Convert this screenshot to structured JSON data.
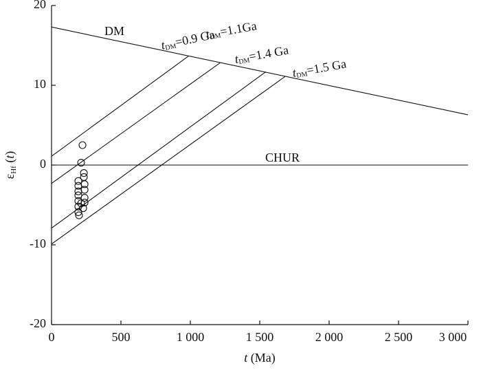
{
  "chart_data": {
    "type": "scatter",
    "x_label": {
      "italic": "t",
      "text": " (Ma)"
    },
    "y_label": {
      "symbol": "ε",
      "sub": "Hf",
      "open": " (",
      "italic": "t",
      "close": ")"
    },
    "xlim": [
      0,
      3000
    ],
    "ylim": [
      -20,
      20
    ],
    "xticks": [
      0,
      500,
      {
        "value": 1000,
        "label": "1 000"
      },
      {
        "value": 1500,
        "label": "1 500"
      },
      {
        "value": 2000,
        "label": "2 000"
      },
      {
        "value": 2500,
        "label": "2 500"
      },
      {
        "value": 3000,
        "label": "3 000"
      }
    ],
    "yticks": [
      -20,
      -10,
      0,
      10,
      20
    ],
    "color": "#111111",
    "x": [
      223,
      213,
      193,
      193,
      193,
      193,
      193,
      193,
      193,
      198,
      233,
      233,
      238,
      238,
      238,
      238,
      228,
      213
    ],
    "y": [
      2.5,
      0.3,
      -2.0,
      -2.6,
      -3.3,
      -3.8,
      -4.5,
      -5.2,
      -5.9,
      -6.3,
      -1.0,
      -1.5,
      -2.4,
      -3.1,
      -4.1,
      -4.7,
      -5.4,
      -4.8
    ],
    "lines": [
      {
        "label": "DM",
        "x": [
          0,
          3000
        ],
        "y": [
          17.3,
          6.3
        ]
      },
      {
        "label": "CHUR",
        "x": [
          0,
          3000
        ],
        "y": [
          0,
          0
        ]
      },
      {
        "label_italic": "t",
        "label_sub": "DM",
        "label_text": "=0.9 Ga",
        "x": [
          0,
          990
        ],
        "y": [
          1.1,
          13.7
        ]
      },
      {
        "label_italic": "t",
        "label_sub": "DM",
        "label_text": "=1.1Ga",
        "x": [
          0,
          1213
        ],
        "y": [
          -2.3,
          12.8
        ]
      },
      {
        "label_italic": "t",
        "label_sub": "DM",
        "label_text": "=1.4 Ga",
        "x": [
          0,
          1545
        ],
        "y": [
          -7.9,
          11.7
        ]
      },
      {
        "label_italic": "t",
        "label_sub": "DM",
        "label_text": "=1.5 Ga",
        "x": [
          0,
          1683
        ],
        "y": [
          -9.9,
          11.1
        ]
      }
    ]
  }
}
